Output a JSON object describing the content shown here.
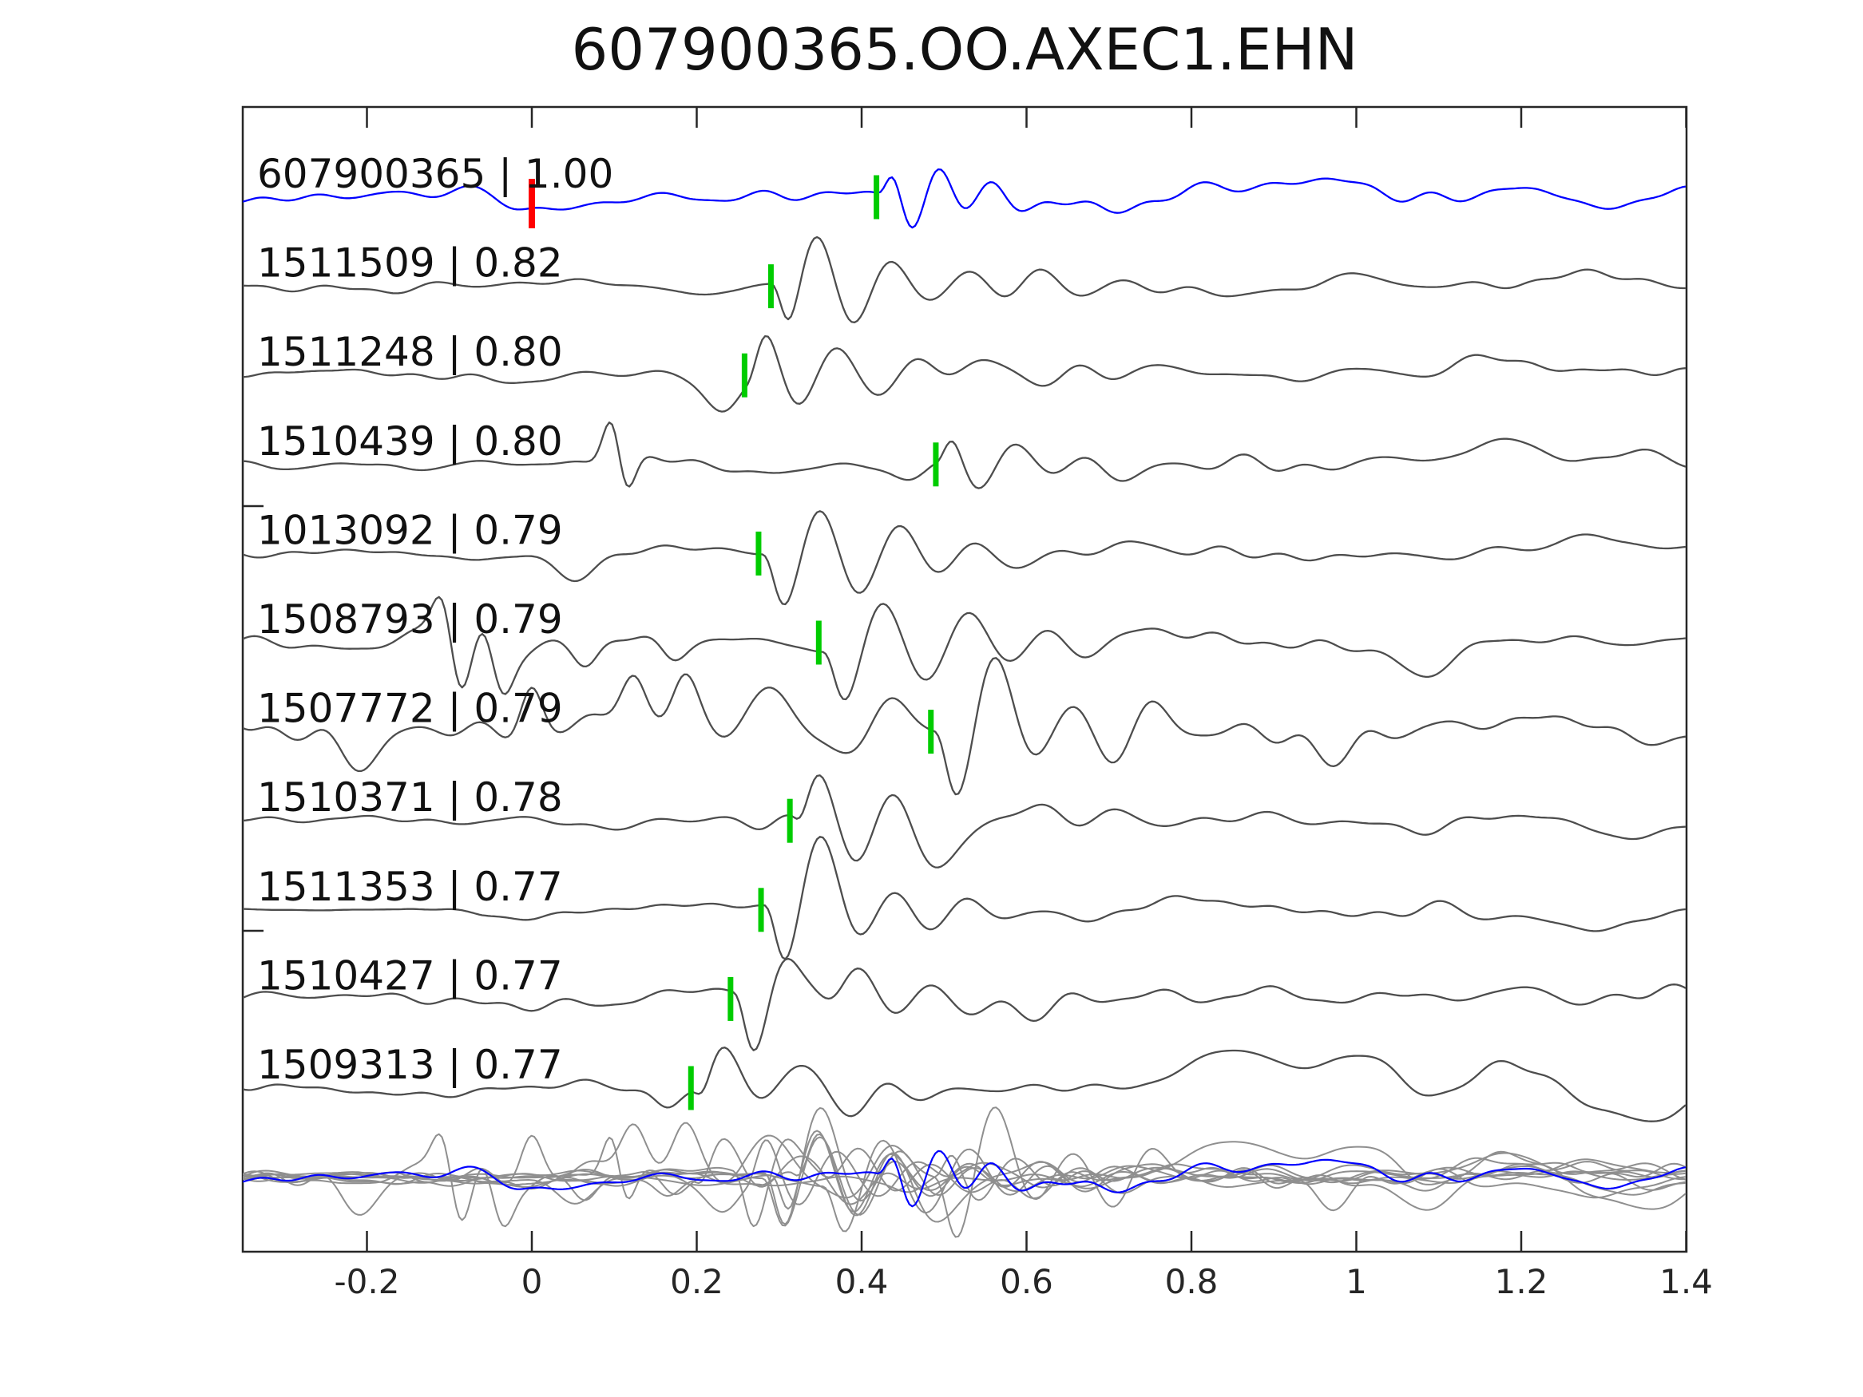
{
  "figure": {
    "title": "607900365.OO.AXEC1.EHN"
  },
  "colors": {
    "target_trace": "#0000ff",
    "template_trace": "#4d4d4d",
    "overlay_trace": "#8f8f8f",
    "pick_marker": "#00cc00",
    "origin_marker": "#ff0000",
    "axis": "#262626",
    "label_text": "#111111"
  },
  "chart_data": {
    "type": "line",
    "title": "607900365.OO.AXEC1.EHN",
    "xlabel": "",
    "ylabel": "",
    "xlim": [
      -0.3506,
      1.4
    ],
    "x_ticks": [
      -0.2,
      0,
      0.2,
      0.4,
      0.6,
      0.8,
      1,
      1.2,
      1.4
    ],
    "x_tick_labels": [
      "-0.2",
      "0",
      "0.2",
      "0.4",
      "0.6",
      "0.8",
      "1",
      "1.2",
      "1.4"
    ],
    "grid": false,
    "legend": "none",
    "label_separator": " | ",
    "traces": [
      {
        "id": "607900365",
        "cc": "1.00",
        "label": "607900365 | 1.00",
        "role": "target",
        "color": "#0000ff",
        "pick": 0.418,
        "origin_time": 0.0,
        "seed": 11,
        "noise": 13,
        "freq": 15.5,
        "phase": 0.3,
        "amp": 62,
        "decay": 0.1,
        "boost": [
          {
            "c": 0.8,
            "w": 0.35,
            "m": 1.5
          }
        ],
        "extras": [
          {
            "t": 0.95,
            "a": 26,
            "w": 0.035
          },
          {
            "t": 1.18,
            "a": 16,
            "w": 0.03
          },
          {
            "t": -0.02,
            "a": -18,
            "w": 0.02
          }
        ]
      },
      {
        "id": "1511509",
        "cc": "0.82",
        "label": "1511509 | 0.82",
        "role": "template",
        "color": "#4d4d4d",
        "pick": 0.29,
        "seed": 22,
        "noise": 9,
        "freq": 11,
        "phase": -2.4,
        "amp": 92,
        "decay": 0.14,
        "boost": [
          {
            "c": 0.75,
            "w": 0.3,
            "m": 1.6
          }
        ],
        "extras": [
          {
            "t": 1.28,
            "a": 20,
            "w": 0.05
          }
        ]
      },
      {
        "id": "1511248",
        "cc": "0.80",
        "label": "1511248 | 0.80",
        "role": "template",
        "color": "#4d4d4d",
        "pick": 0.258,
        "seed": 33,
        "noise": 10,
        "freq": 10.5,
        "phase": 0.26,
        "amp": 70,
        "decay": 0.16,
        "boost": [
          {
            "c": 0.8,
            "w": 0.3,
            "m": 1.5
          }
        ],
        "extras": [
          {
            "t": 0.232,
            "a": -42,
            "w": 0.02
          },
          {
            "t": 1.15,
            "a": 28,
            "w": 0.05
          },
          {
            "t": 0.53,
            "a": 28,
            "w": 0.03
          }
        ]
      },
      {
        "id": "1510439",
        "cc": "0.80",
        "label": "1510439 | 0.80",
        "role": "template",
        "color": "#4d4d4d",
        "pick": 0.49,
        "seed": 44,
        "noise": 11,
        "freq": 11,
        "phase": 1.0,
        "amp": 58,
        "decay": 0.13,
        "boost": [
          {
            "c": 0.75,
            "w": 0.3,
            "m": 1.4
          }
        ],
        "extras": [
          {
            "t": 0.098,
            "a": 72,
            "w": 0.011
          },
          {
            "t": 0.113,
            "a": -55,
            "w": 0.011
          },
          {
            "t": 0.46,
            "a": -25,
            "w": 0.02
          },
          {
            "t": 1.18,
            "a": 30,
            "w": 0.04
          },
          {
            "t": 1.33,
            "a": 22,
            "w": 0.04
          }
        ]
      },
      {
        "id": "1013092",
        "cc": "0.79",
        "label": "1013092 | 0.79",
        "role": "template",
        "color": "#4d4d4d",
        "pick": 0.275,
        "seed": 55,
        "noise": 10,
        "freq": 10.5,
        "phase": 2.78,
        "amp": 85,
        "decay": 0.16,
        "boost": [
          {
            "c": 0.7,
            "w": 0.3,
            "m": 1.3
          }
        ],
        "extras": [
          {
            "t": 0.05,
            "a": -28,
            "w": 0.025
          },
          {
            "t": 1.28,
            "a": 22,
            "w": 0.04
          }
        ]
      },
      {
        "id": "1508793",
        "cc": "0.79",
        "label": "1508793 | 0.79",
        "role": "template",
        "color": "#4d4d4d",
        "pick": 0.348,
        "seed": 66,
        "noise": 11,
        "freq": 10,
        "phase": 2.78,
        "amp": 85,
        "decay": 0.2,
        "boost": [
          {
            "c": -0.08,
            "w": 0.07,
            "m": 3.6
          },
          {
            "c": 0.9,
            "w": 0.35,
            "m": 1.8
          }
        ],
        "extras": [
          {
            "t": -0.108,
            "a": 62,
            "w": 0.012
          },
          {
            "t": -0.088,
            "a": -55,
            "w": 0.012
          },
          {
            "t": -0.06,
            "a": 45,
            "w": 0.012
          },
          {
            "t": -0.035,
            "a": -45,
            "w": 0.012
          },
          {
            "t": 0.065,
            "a": -35,
            "w": 0.015
          },
          {
            "t": 0.171,
            "a": -28,
            "w": 0.015
          },
          {
            "t": 1.1,
            "a": -30,
            "w": 0.03
          }
        ]
      },
      {
        "id": "1507772",
        "cc": "0.79",
        "label": "1507772 | 0.79",
        "role": "template",
        "color": "#4d4d4d",
        "pick": 0.484,
        "seed": 77,
        "noise": 24,
        "freq": 10.5,
        "phase": 2.78,
        "amp": 95,
        "decay": 0.16,
        "boost": [
          {
            "c": 0.12,
            "w": 0.28,
            "m": 1.9
          },
          {
            "c": 1.1,
            "w": 0.3,
            "m": 1.4
          }
        ],
        "extras": [
          {
            "t": -0.001,
            "a": 60,
            "w": 0.013
          },
          {
            "t": 0.123,
            "a": 55,
            "w": 0.015
          },
          {
            "t": 0.185,
            "a": 50,
            "w": 0.015
          },
          {
            "t": 0.3,
            "a": 45,
            "w": 0.025
          },
          {
            "t": 0.44,
            "a": 55,
            "w": 0.025
          }
        ]
      },
      {
        "id": "1510371",
        "cc": "0.78",
        "label": "1510371 | 0.78",
        "role": "template",
        "color": "#4d4d4d",
        "pick": 0.313,
        "seed": 88,
        "noise": 10,
        "freq": 10.8,
        "phase": -0.8,
        "amp": 78,
        "decay": 0.17,
        "boost": [
          {
            "c": 0.8,
            "w": 0.3,
            "m": 1.4
          }
        ],
        "extras": [
          {
            "t": 0.28,
            "a": -20,
            "w": 0.018
          },
          {
            "t": 0.52,
            "a": -48,
            "w": 0.03
          },
          {
            "t": 0.575,
            "a": 36,
            "w": 0.025
          },
          {
            "t": 1.33,
            "a": -26,
            "w": 0.04
          }
        ]
      },
      {
        "id": "1511353",
        "cc": "0.77",
        "label": "1511353 | 0.77",
        "role": "template",
        "color": "#4d4d4d",
        "pick": 0.278,
        "seed": 99,
        "noise": 12,
        "freq": 11,
        "phase": 2.9,
        "amp": 95,
        "decay": 0.13,
        "quiet_until": -0.16,
        "boost": [
          {
            "c": 0.75,
            "w": 0.3,
            "m": 1.4
          }
        ],
        "extras": [
          {
            "t": 0.35,
            "a": 32,
            "w": 0.025
          },
          {
            "t": 1.3,
            "a": -26,
            "w": 0.05
          }
        ]
      },
      {
        "id": "1510427",
        "cc": "0.77",
        "label": "1510427 | 0.77",
        "role": "template",
        "color": "#4d4d4d",
        "pick": 0.241,
        "seed": 110,
        "noise": 15,
        "freq": 11.5,
        "phase": 2.9,
        "amp": 95,
        "decay": 0.12,
        "boost": [
          {
            "c": 0.7,
            "w": 0.35,
            "m": 1.3
          }
        ],
        "extras": [
          {
            "t": 0.345,
            "a": 40,
            "w": 0.016
          },
          {
            "t": 1.2,
            "a": 24,
            "w": 0.04
          }
        ]
      },
      {
        "id": "1509313",
        "cc": "0.77",
        "label": "1509313 | 0.77",
        "role": "template",
        "color": "#4d4d4d",
        "pick": 0.193,
        "seed": 121,
        "noise": 14,
        "freq": 10,
        "phase": -0.94,
        "amp": 72,
        "decay": 0.12,
        "boost": [
          {
            "c": 0.25,
            "w": 0.2,
            "m": 1.4
          }
        ],
        "extras": [
          {
            "t": 0.165,
            "a": -30,
            "w": 0.016
          },
          {
            "t": 0.85,
            "a": 45,
            "w": 0.045
          },
          {
            "t": 1.0,
            "a": 42,
            "w": 0.045
          },
          {
            "t": 1.18,
            "a": 26,
            "w": 0.04
          },
          {
            "t": 1.35,
            "a": -42,
            "w": 0.05
          }
        ]
      }
    ],
    "overlay": {
      "description": "all traces superimposed on one baseline",
      "gray": "#8f8f8f",
      "target_color": "#0000ff",
      "amplitude_scale": 0.95
    }
  }
}
